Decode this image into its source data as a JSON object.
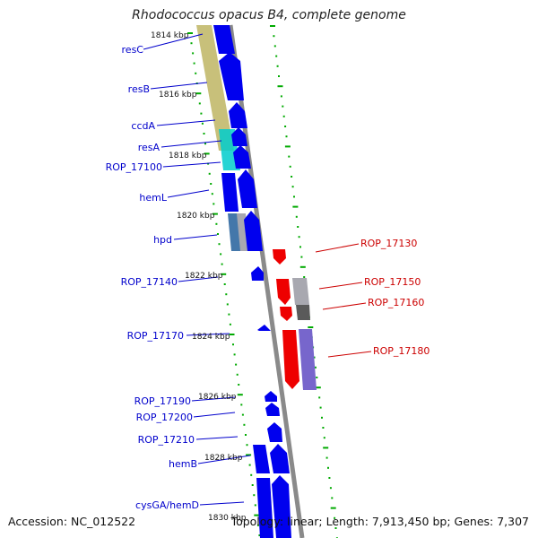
{
  "title": "Rhodococcus opacus B4, complete genome",
  "footer": {
    "accession": "Accession: NC_012522",
    "summary": "Topology: linear; Length: 7,913,450 bp; Genes: 7,307"
  },
  "colors": {
    "gene_forward": "#0000ee",
    "gene_reverse": "#ee0000",
    "gene_gray": "#a8a8b0",
    "gene_dark": "#5a5a5a",
    "gene_purple": "#7766cc",
    "label_blue": "#0000cc",
    "label_red": "#cc0000",
    "tick_green": "#00aa00",
    "backbone": "#8a8a8a",
    "resolvase_region": "#c8c07a",
    "cyan_region": "#00cccc",
    "steel_region": "#4477aa"
  },
  "scale_labels": [
    "1814 kbp",
    "1816 kbp",
    "1818 kbp",
    "1820 kbp",
    "1822 kbp",
    "1824 kbp",
    "1826 kbp",
    "1828 kbp",
    "1830 kbp"
  ],
  "left_genes": [
    "resC",
    "resB",
    "ccdA",
    "resA",
    "ROP_17100",
    "hemL",
    "hpd",
    "ROP_17140",
    "ROP_17170",
    "ROP_17190",
    "ROP_17200",
    "ROP_17210",
    "hemB",
    "cysGA/hemD"
  ],
  "right_genes": [
    "ROP_17130",
    "ROP_17150",
    "ROP_17160",
    "ROP_17180"
  ]
}
